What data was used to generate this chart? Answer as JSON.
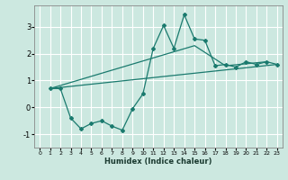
{
  "xlabel": "Humidex (Indice chaleur)",
  "background_color": "#cce8e0",
  "line_color": "#1a7a6e",
  "grid_color": "#ffffff",
  "xlim": [
    -0.5,
    23.5
  ],
  "ylim": [
    -1.5,
    3.8
  ],
  "xticks": [
    0,
    1,
    2,
    3,
    4,
    5,
    6,
    7,
    8,
    9,
    10,
    11,
    12,
    13,
    14,
    15,
    16,
    17,
    18,
    19,
    20,
    21,
    22,
    23
  ],
  "yticks": [
    -1,
    0,
    1,
    2,
    3
  ],
  "series": [
    {
      "x": [
        1,
        2,
        3,
        4,
        5,
        6,
        7,
        8,
        9,
        10,
        11,
        12,
        13,
        14,
        15,
        16,
        17,
        18,
        19,
        20,
        21,
        22,
        23
      ],
      "y": [
        0.7,
        0.7,
        -0.4,
        -0.8,
        -0.6,
        -0.5,
        -0.7,
        -0.85,
        -0.05,
        0.5,
        2.2,
        3.05,
        2.2,
        3.45,
        2.55,
        2.5,
        1.55,
        1.6,
        1.5,
        1.7,
        1.6,
        1.7,
        1.6
      ],
      "has_markers": true
    },
    {
      "x": [
        1,
        15,
        18,
        22
      ],
      "y": [
        0.7,
        2.3,
        1.55,
        1.7
      ],
      "has_markers": false
    },
    {
      "x": [
        1,
        23
      ],
      "y": [
        0.7,
        1.6
      ],
      "has_markers": false
    }
  ]
}
